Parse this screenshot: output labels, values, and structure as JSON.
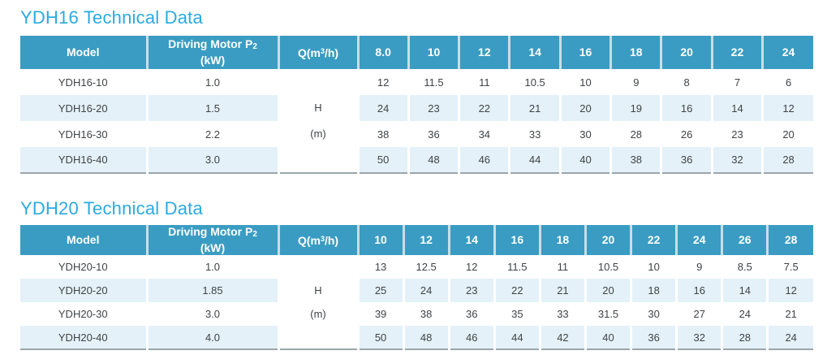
{
  "colors": {
    "title": "#29ABE2",
    "header-bg": "#3A9CC2",
    "header-text": "#FFFFFF",
    "header-separator": "#CBDDE5",
    "stripe": "#E4F1F8",
    "cell-separator": "#FFFFFF",
    "text": "#3F4347",
    "table-bottom-border": "#9BA5AA"
  },
  "tables": [
    {
      "title": "YDH16 Technical Data",
      "headers": {
        "model": "Model",
        "motor_main": "Driving Motor P",
        "motor_sub": "2",
        "motor_unit": "(kW)",
        "q_pre": "Q(m",
        "q_sup": "3",
        "q_post": "/h)",
        "flow": [
          "8.0",
          "10",
          "12",
          "14",
          "16",
          "18",
          "20",
          "22",
          "24"
        ]
      },
      "head_unit": {
        "line1": "H",
        "line2": "(m)"
      },
      "rows": [
        {
          "model": "YDH16-10",
          "power": "1.0",
          "values": [
            "12",
            "11.5",
            "11",
            "10.5",
            "10",
            "9",
            "8",
            "7",
            "6"
          ]
        },
        {
          "model": "YDH16-20",
          "power": "1.5",
          "values": [
            "24",
            "23",
            "22",
            "21",
            "20",
            "19",
            "16",
            "14",
            "12"
          ]
        },
        {
          "model": "YDH16-30",
          "power": "2.2",
          "values": [
            "38",
            "36",
            "34",
            "33",
            "30",
            "28",
            "26",
            "23",
            "20"
          ]
        },
        {
          "model": "YDH16-40",
          "power": "3.0",
          "values": [
            "50",
            "48",
            "46",
            "44",
            "40",
            "38",
            "36",
            "32",
            "28"
          ]
        }
      ]
    },
    {
      "title": "YDH20 Technical Data",
      "headers": {
        "model": "Model",
        "motor_main": "Driving Motor P",
        "motor_sub": "2",
        "motor_unit": "(kW)",
        "q_pre": "Q(m",
        "q_sup": "3",
        "q_post": "/h)",
        "flow": [
          "10",
          "12",
          "14",
          "16",
          "18",
          "20",
          "22",
          "24",
          "26",
          "28"
        ]
      },
      "head_unit": {
        "line1": "H",
        "line2": "(m)"
      },
      "rows": [
        {
          "model": "YDH20-10",
          "power": "1.0",
          "values": [
            "13",
            "12.5",
            "12",
            "11.5",
            "11",
            "10.5",
            "10",
            "9",
            "8.5",
            "7.5"
          ]
        },
        {
          "model": "YDH20-20",
          "power": "1.85",
          "values": [
            "25",
            "24",
            "23",
            "22",
            "21",
            "20",
            "18",
            "16",
            "14",
            "12"
          ]
        },
        {
          "model": "YDH20-30",
          "power": "3.0",
          "values": [
            "39",
            "38",
            "36",
            "35",
            "33",
            "31.5",
            "30",
            "27",
            "24",
            "21"
          ]
        },
        {
          "model": "YDH20-40",
          "power": "4.0",
          "values": [
            "50",
            "48",
            "46",
            "44",
            "42",
            "40",
            "36",
            "32",
            "28",
            "24"
          ]
        }
      ]
    }
  ]
}
